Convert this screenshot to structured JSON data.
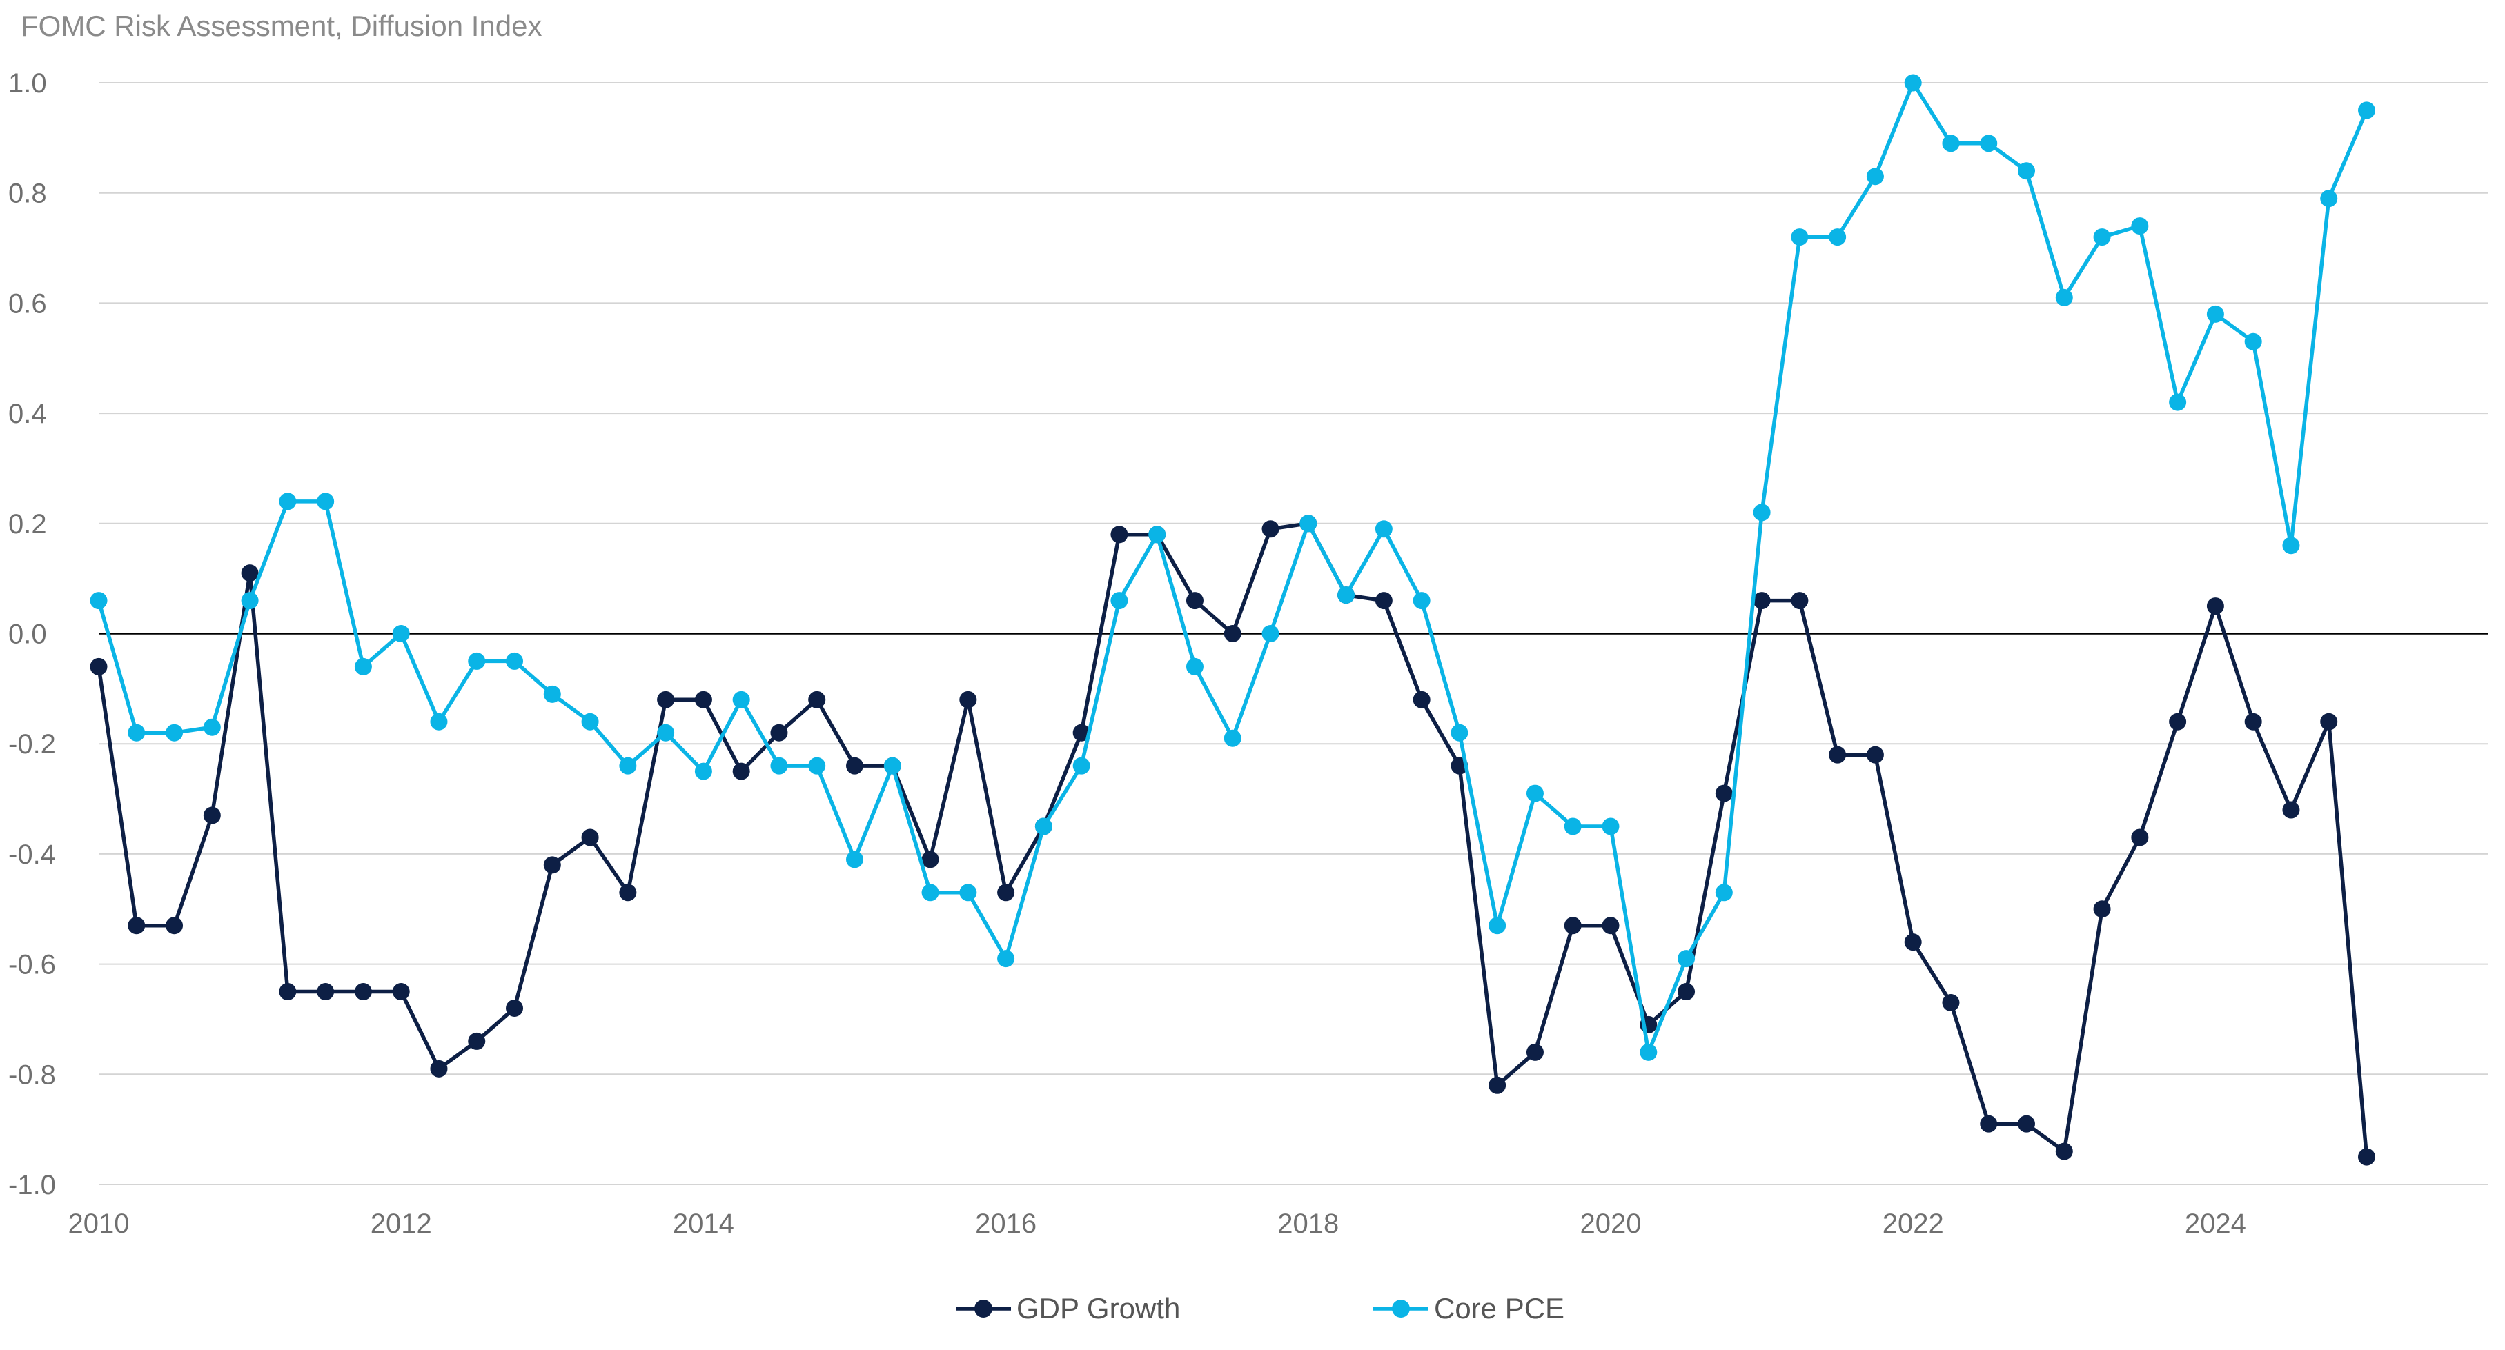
{
  "chart_data": {
    "type": "line",
    "title": "FOMC Risk Assessment, Diffusion Index",
    "xlabel": "",
    "ylabel": "",
    "ylim": [
      -1.0,
      1.0
    ],
    "xlim": [
      2010,
      2025.9
    ],
    "yticks": [
      "1.0",
      "0.8",
      "0.6",
      "0.4",
      "0.2",
      "0.0",
      "-0.2",
      "-0.4",
      "-0.6",
      "-0.8",
      "-1.0"
    ],
    "ytick_values": [
      1.0,
      0.8,
      0.6,
      0.4,
      0.2,
      0.0,
      -0.2,
      -0.4,
      -0.6,
      -0.8,
      -1.0
    ],
    "xticks": [
      "2010",
      "2012",
      "2014",
      "2016",
      "2018",
      "2020",
      "2022",
      "2024"
    ],
    "xtick_values": [
      2010,
      2012,
      2014,
      2016,
      2018,
      2020,
      2022,
      2024
    ],
    "grid": true,
    "legend_position": "bottom-center",
    "x": [
      2010.0,
      2010.25,
      2010.5,
      2010.75,
      2011.0,
      2011.25,
      2011.5,
      2011.75,
      2012.0,
      2012.25,
      2012.5,
      2012.75,
      2013.0,
      2013.25,
      2013.5,
      2013.75,
      2014.0,
      2014.25,
      2014.5,
      2014.75,
      2015.0,
      2015.25,
      2015.5,
      2015.75,
      2016.0,
      2016.25,
      2016.5,
      2016.75,
      2017.0,
      2017.25,
      2017.5,
      2017.75,
      2018.0,
      2018.25,
      2018.5,
      2018.75,
      2019.0,
      2019.25,
      2019.5,
      2019.75,
      2020.0,
      2020.25,
      2020.5,
      2020.75,
      2021.0,
      2021.25,
      2021.5,
      2021.75,
      2022.0,
      2022.25,
      2022.5,
      2022.75,
      2023.0,
      2023.25,
      2023.5,
      2023.75,
      2024.0,
      2024.25,
      2024.5,
      2024.75,
      2025.0
    ],
    "series": [
      {
        "name": "GDP Growth",
        "color": "#0d1f45",
        "values": [
          -0.06,
          -0.53,
          -0.53,
          -0.33,
          0.11,
          -0.65,
          -0.65,
          -0.65,
          -0.65,
          -0.79,
          -0.74,
          -0.68,
          -0.42,
          -0.37,
          -0.47,
          -0.12,
          -0.12,
          -0.25,
          -0.18,
          -0.12,
          -0.24,
          -0.24,
          -0.41,
          -0.12,
          -0.47,
          -0.35,
          -0.18,
          0.18,
          0.18,
          0.06,
          0.0,
          0.19,
          0.2,
          0.07,
          0.06,
          -0.12,
          -0.24,
          -0.82,
          -0.76,
          -0.53,
          -0.53,
          -0.71,
          -0.65,
          -0.29,
          0.06,
          0.06,
          -0.22,
          -0.22,
          -0.56,
          -0.67,
          -0.89,
          -0.89,
          -0.94,
          -0.5,
          -0.37,
          -0.16,
          0.05,
          -0.16,
          -0.32,
          -0.16,
          -0.95
        ]
      },
      {
        "name": "Core PCE",
        "color": "#0ab4e6",
        "values": [
          0.06,
          -0.18,
          -0.18,
          -0.17,
          0.06,
          0.24,
          0.24,
          -0.06,
          0.0,
          -0.16,
          -0.05,
          -0.05,
          -0.11,
          -0.16,
          -0.24,
          -0.18,
          -0.25,
          -0.12,
          -0.24,
          -0.24,
          -0.41,
          -0.24,
          -0.47,
          -0.47,
          -0.59,
          -0.35,
          -0.24,
          0.06,
          0.18,
          -0.06,
          -0.19,
          0.0,
          0.2,
          0.07,
          0.19,
          0.06,
          -0.18,
          -0.53,
          -0.29,
          -0.35,
          -0.35,
          -0.76,
          -0.59,
          -0.47,
          0.22,
          0.72,
          0.72,
          0.83,
          1.0,
          0.89,
          0.89,
          0.84,
          0.61,
          0.72,
          0.74,
          0.42,
          0.58,
          0.53,
          0.16,
          0.79,
          0.95
        ]
      }
    ]
  }
}
